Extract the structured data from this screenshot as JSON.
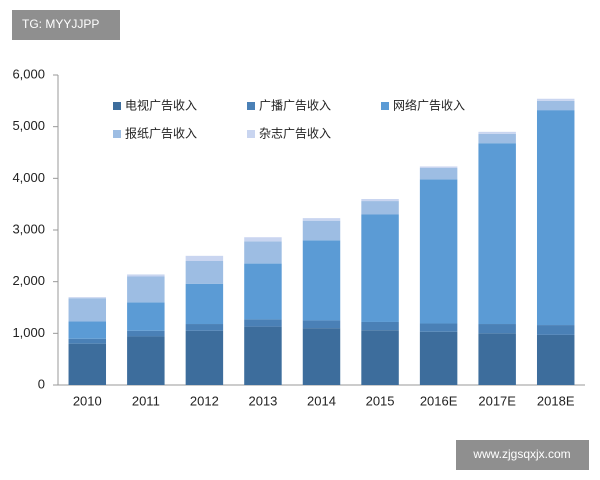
{
  "chart_data": {
    "type": "stacked-bar",
    "categories": [
      "2010",
      "2011",
      "2012",
      "2013",
      "2014",
      "2015",
      "2016E",
      "2017E",
      "2018E"
    ],
    "series": [
      {
        "name": "电视广告收入",
        "color": "#3d6d9c",
        "values": [
          800,
          940,
          1050,
          1130,
          1100,
          1060,
          1030,
          1000,
          970
        ]
      },
      {
        "name": "广播广告收入",
        "color": "#4a80b6",
        "values": [
          95,
          110,
          130,
          140,
          150,
          160,
          160,
          180,
          190
        ]
      },
      {
        "name": "网络广告收入",
        "color": "#5b9bd5",
        "values": [
          335,
          550,
          780,
          1080,
          1550,
          2080,
          2790,
          3500,
          4160
        ]
      },
      {
        "name": "报纸广告收入",
        "color": "#9dbde3",
        "values": [
          450,
          500,
          440,
          430,
          380,
          260,
          220,
          180,
          180
        ]
      },
      {
        "name": "杂志广告收入",
        "color": "#c9d5f0",
        "values": [
          20,
          40,
          100,
          80,
          50,
          40,
          30,
          40,
          40
        ]
      }
    ],
    "ylim": [
      0,
      6000
    ],
    "yticks": [
      0,
      {
        "value": 1000,
        "label": "1,000"
      },
      {
        "value": 2000,
        "label": "2,000"
      },
      {
        "value": 3000,
        "label": "3,000"
      },
      {
        "value": 4000,
        "label": "4,000"
      },
      {
        "value": 5000,
        "label": "5,000"
      },
      {
        "value": 6000,
        "label": "6,000"
      }
    ],
    "grid": false
  },
  "watermarks": [
    "TG: MYYJJPP",
    "www.zjgsqxjx.com"
  ]
}
